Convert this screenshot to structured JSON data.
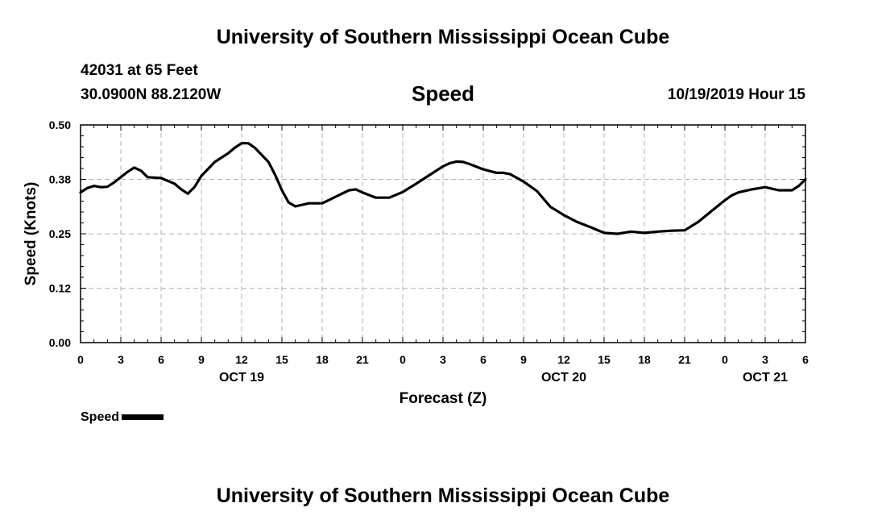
{
  "header": {
    "title_top": "University of Southern Mississippi Ocean Cube",
    "station": "42031 at 65 Feet",
    "coords": "30.0900N 88.2120W",
    "datetime": "10/19/2019 Hour 15",
    "title_bottom": "University of Southern Mississippi Ocean Cube"
  },
  "legend": {
    "label": "Speed"
  },
  "chart_data": {
    "type": "line",
    "title": "Speed",
    "xlabel": "Forecast (Z)",
    "ylabel": "Speed (Knots)",
    "xlim": [
      0,
      54
    ],
    "ylim": [
      0,
      0.5
    ],
    "grid": true,
    "legend_position": "bottom-left",
    "y_ticks": [
      0.0,
      0.125,
      0.25,
      0.375,
      0.5
    ],
    "y_tick_labels": [
      "0.00",
      "0.12",
      "0.25",
      "0.38",
      "0.50"
    ],
    "x_ticks": [
      0,
      3,
      6,
      9,
      12,
      15,
      18,
      21,
      24,
      27,
      30,
      33,
      36,
      39,
      42,
      45,
      48,
      51,
      54
    ],
    "x_tick_labels": [
      "0",
      "3",
      "6",
      "9",
      "12",
      "15",
      "18",
      "21",
      "0",
      "3",
      "6",
      "9",
      "12",
      "15",
      "18",
      "21",
      "0",
      "3",
      "6"
    ],
    "day_labels": [
      {
        "x": 12,
        "label": "OCT 19"
      },
      {
        "x": 36,
        "label": "OCT 20"
      },
      {
        "x": 51,
        "label": "OCT 21"
      }
    ],
    "series": [
      {
        "name": "Speed",
        "color": "#000000",
        "x": [
          0,
          0.5,
          1,
          1.5,
          2,
          2.5,
          3,
          3.5,
          4,
          4.5,
          5,
          6,
          7,
          7.5,
          8,
          8.5,
          9,
          10,
          11,
          11.5,
          12,
          12.5,
          13,
          14,
          14.5,
          15,
          15.5,
          16,
          17,
          18,
          19,
          20,
          20.5,
          21,
          22,
          23,
          24,
          25,
          26,
          27,
          27.5,
          28,
          28.5,
          29,
          30,
          31,
          31.5,
          32,
          33,
          34,
          34.5,
          35,
          36,
          37,
          38,
          39,
          40,
          41,
          42,
          43,
          44,
          45,
          46,
          47,
          48,
          48.5,
          49,
          50,
          51,
          52,
          53,
          53.5,
          54
        ],
        "values": [
          0.345,
          0.355,
          0.36,
          0.357,
          0.358,
          0.368,
          0.38,
          0.392,
          0.402,
          0.395,
          0.38,
          0.378,
          0.365,
          0.352,
          0.342,
          0.358,
          0.383,
          0.415,
          0.435,
          0.448,
          0.458,
          0.458,
          0.447,
          0.415,
          0.385,
          0.35,
          0.322,
          0.313,
          0.32,
          0.32,
          0.335,
          0.35,
          0.352,
          0.345,
          0.333,
          0.333,
          0.346,
          0.365,
          0.385,
          0.405,
          0.412,
          0.416,
          0.415,
          0.41,
          0.398,
          0.39,
          0.39,
          0.387,
          0.37,
          0.348,
          0.33,
          0.312,
          0.293,
          0.277,
          0.265,
          0.252,
          0.25,
          0.255,
          0.252,
          0.255,
          0.257,
          0.258,
          0.277,
          0.302,
          0.327,
          0.338,
          0.345,
          0.352,
          0.357,
          0.35,
          0.35,
          0.36,
          0.375
        ]
      }
    ]
  }
}
